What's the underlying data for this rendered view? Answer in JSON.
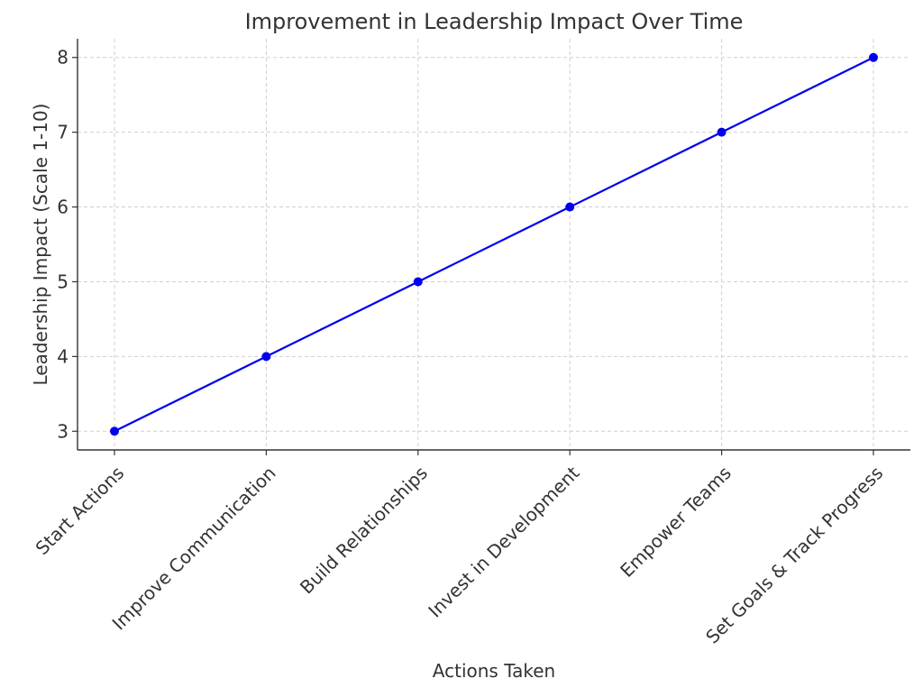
{
  "chart_data": {
    "type": "line",
    "title": "Improvement in Leadership Impact Over Time",
    "xlabel": "Actions Taken",
    "ylabel": "Leadership Impact (Scale 1-10)",
    "categories": [
      "Start Actions",
      "Improve Communication",
      "Build Relationships",
      "Invest in Development",
      "Empower Teams",
      "Set Goals & Track Progress"
    ],
    "series": [
      {
        "values": [
          3,
          4,
          5,
          6,
          7,
          8
        ],
        "color": "#0000ee",
        "marker": "circle"
      }
    ],
    "y_ticks": [
      3,
      4,
      5,
      6,
      7,
      8
    ],
    "ylim": [
      2.75,
      8.25
    ],
    "grid": true,
    "legend": "none"
  }
}
